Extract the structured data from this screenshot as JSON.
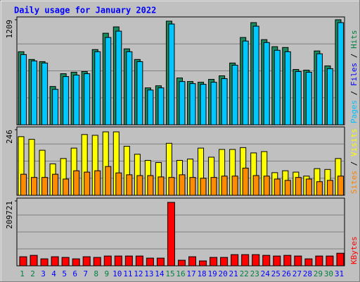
{
  "title": "Daily usage for January 2022",
  "legend_separator": " / ",
  "categories": [
    "1",
    "2",
    "3",
    "4",
    "5",
    "6",
    "7",
    "8",
    "9",
    "10",
    "11",
    "12",
    "13",
    "14",
    "15",
    "16",
    "17",
    "18",
    "19",
    "20",
    "21",
    "22",
    "23",
    "24",
    "25",
    "26",
    "27",
    "28",
    "29",
    "30",
    "31"
  ],
  "category_colors": [
    "#008040",
    "#008040",
    "#0000ff",
    "#0000ff",
    "#0000ff",
    "#0000ff",
    "#0000ff",
    "#008040",
    "#008040",
    "#0000ff",
    "#0000ff",
    "#0000ff",
    "#0000ff",
    "#0000ff",
    "#008040",
    "#008040",
    "#0000ff",
    "#0000ff",
    "#0000ff",
    "#0000ff",
    "#0000ff",
    "#008040",
    "#008040",
    "#0000ff",
    "#0000ff",
    "#0000ff",
    "#0000ff",
    "#0000ff",
    "#008040",
    "#008040",
    "#0000ff"
  ],
  "chart_data": [
    {
      "type": "bar",
      "ylim": [
        0,
        1209
      ],
      "yticks": [
        1209
      ],
      "legend": [
        {
          "name": "Pages",
          "color": "#00c0ff"
        },
        {
          "name": "Files",
          "color": "#0000ff"
        },
        {
          "name": "Hits",
          "color": "#008040"
        }
      ],
      "series": [
        {
          "legend": 2,
          "color": "#1a8a5e",
          "values": [
            841,
            752,
            727,
            441,
            588,
            605,
            613,
            866,
            1054,
            1127,
            874,
            752,
            425,
            449,
            1193,
            539,
            498,
            490,
            523,
            564,
            711,
            1005,
            1176,
            980,
            899,
            890,
            637,
            629,
            850,
            678,
            1209
          ]
        },
        {
          "legend": 0,
          "color": "#00c8ff",
          "values": [
            808,
            735,
            711,
            408,
            555,
            572,
            588,
            841,
            1005,
            1078,
            841,
            727,
            400,
            425,
            1160,
            498,
            474,
            466,
            490,
            531,
            686,
            964,
            1135,
            947,
            858,
            841,
            613,
            605,
            817,
            646,
            1176
          ]
        }
      ]
    },
    {
      "type": "bar",
      "ylim": [
        0,
        246
      ],
      "yticks": [
        246
      ],
      "legend": [
        {
          "name": "Sites",
          "color": "#ff8000"
        },
        {
          "name": "Visits",
          "color": "#ffff00"
        }
      ],
      "series": [
        {
          "legend": 1,
          "color": "#ffff00",
          "values": [
            220,
            210,
            169,
            118,
            138,
            177,
            228,
            225,
            238,
            238,
            184,
            154,
            131,
            123,
            195,
            131,
            136,
            177,
            143,
            172,
            172,
            179,
            159,
            164,
            85,
            92,
            87,
            72,
            100,
            97,
            138
          ]
        },
        {
          "legend": 0,
          "color": "#ff8c00",
          "values": [
            79,
            67,
            67,
            79,
            61,
            92,
            87,
            92,
            108,
            84,
            77,
            74,
            74,
            69,
            67,
            77,
            67,
            64,
            67,
            72,
            72,
            102,
            74,
            72,
            61,
            56,
            67,
            61,
            51,
            56,
            72
          ]
        }
      ]
    },
    {
      "type": "bar",
      "ylim": [
        0,
        209721
      ],
      "yticks": [
        209721
      ],
      "legend": [
        {
          "name": "KBytes",
          "color": "#ff0000"
        }
      ],
      "series": [
        {
          "legend": 0,
          "color": "#ff0000",
          "values": [
            29300,
            33800,
            22500,
            29300,
            27100,
            22500,
            29300,
            27100,
            31600,
            31600,
            31600,
            31600,
            24800,
            24800,
            205000,
            18000,
            29300,
            15800,
            27100,
            27100,
            36100,
            36100,
            36100,
            33800,
            31600,
            33800,
            31600,
            22500,
            31600,
            31600,
            40600
          ]
        }
      ]
    }
  ]
}
